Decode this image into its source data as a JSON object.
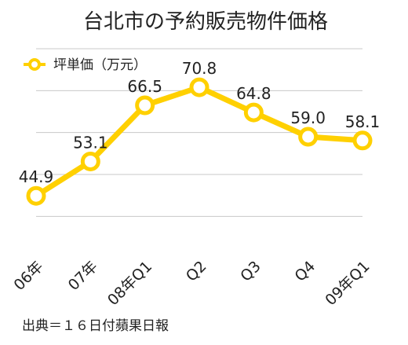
{
  "chart_data": {
    "type": "line",
    "title": "台北市の予約販売物件価格",
    "categories": [
      "06年",
      "07年",
      "08年Q1",
      "Q2",
      "Q3",
      "Q4",
      "09年Q1"
    ],
    "series": [
      {
        "name": "坪単価（万元）",
        "values": [
          44.9,
          53.1,
          66.5,
          70.8,
          64.8,
          59.0,
          58.1
        ],
        "labels": [
          "44.9",
          "53.1",
          "66.5",
          "70.8",
          "64.8",
          "59.0",
          "58.1"
        ],
        "color": "#FFD000"
      }
    ],
    "ylim": [
      35,
      80
    ],
    "grid": true,
    "legend_position": "top-left",
    "source": "出典＝１６日付蘋果日報"
  }
}
